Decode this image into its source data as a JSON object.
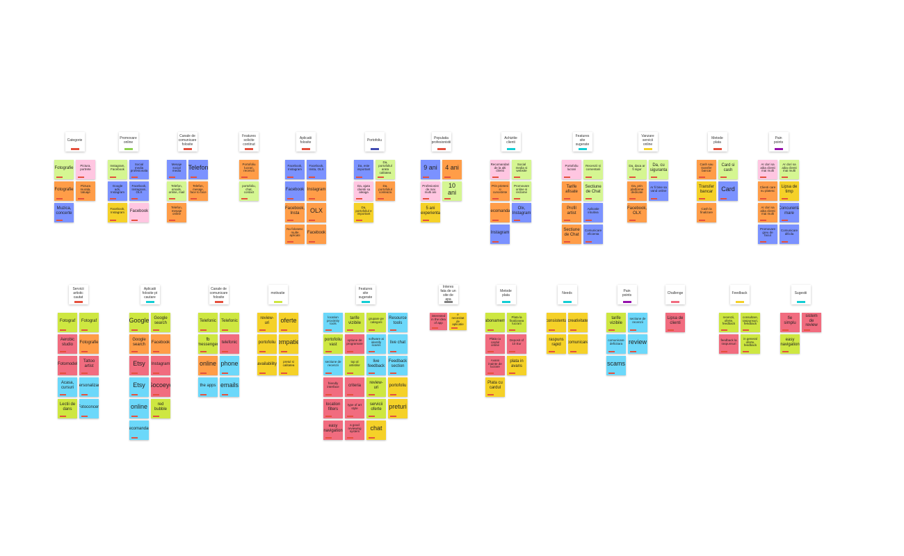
{
  "board": {
    "groups": [
      {
        "title": "Categorie",
        "tag_color": "#e5503d",
        "notes": [
          {
            "text": "Fotografie",
            "color": "#d5f692"
          },
          {
            "text": "Pictura, portrete",
            "color": "#ffc6e1"
          },
          {
            "text": "Fotografie",
            "color": "#ff9d48"
          },
          {
            "text": "Pictura murala, tatuaje",
            "color": "#ff9d48"
          },
          {
            "text": "Muzica, concerte",
            "color": "#7b92ff"
          }
        ]
      },
      {
        "title": "Promovare online",
        "tag_color": "#8fd14f",
        "notes": [
          {
            "text": "Instagram, Facebook",
            "color": "#d5f692"
          },
          {
            "text": "Social media profesionala",
            "color": "#7b92ff"
          },
          {
            "text": "Google ads, Instagram",
            "color": "#7b92ff"
          },
          {
            "text": "Facebook, Instagram, OLX",
            "color": "#7b92ff"
          },
          {
            "text": "Facebook, Instagram",
            "color": "#f5d128"
          },
          {
            "text": "Facebook",
            "color": "#ffc6e1"
          }
        ]
      },
      {
        "title": "Canale de comunicare folosite",
        "tag_color": "#e5503d",
        "notes": [
          {
            "text": "Mesaje social media",
            "color": "#7b92ff"
          },
          {
            "text": "Telefon",
            "color": "#7b92ff"
          },
          {
            "text": "Telefon, emails, online, mail",
            "color": "#d5f692"
          },
          {
            "text": "Telefon, mesaje, face to face",
            "color": "#ff9d48"
          },
          {
            "text": "Telefon, mesaje online",
            "color": "#ff9d48"
          }
        ]
      },
      {
        "title": "Features solicite continut",
        "tag_color": "#e5503d",
        "notes": [
          {
            "text": "Portofoliu lucrari, recenzii",
            "color": "#ff9d48"
          },
          {
            "text": "portofoliu, chat, contact",
            "color": "#d5f692"
          }
        ]
      },
      {
        "title": "Aplicatii folosite",
        "tag_color": "#e5503d",
        "notes": [
          {
            "text": "Facebook, Instagram",
            "color": "#7b92ff"
          },
          {
            "text": "Facebook, Insta, OLX",
            "color": "#7b92ff"
          },
          {
            "text": "Facebook",
            "color": "#7b92ff"
          },
          {
            "text": "Instagram",
            "color": "#ff9d48"
          },
          {
            "text": "Facebook, Insta",
            "color": "#ff9d48"
          },
          {
            "text": "OLX",
            "color": "#ff9d48"
          },
          {
            "text": "Nu folosesc multe aplicatii",
            "color": "#ff9d48"
          },
          {
            "text": "Facebook",
            "color": "#ff9d48"
          }
        ]
      },
      {
        "title": "Portofoliu",
        "tag_color": "#414bb2",
        "notes": [
          {
            "text": "Da, este important",
            "color": "#7b92ff"
          },
          {
            "text": "Da, portofoliul arata calitatea",
            "color": "#d5f692"
          },
          {
            "text": "Da, ajuta clientii sa aleaga",
            "color": "#ffc6e1"
          },
          {
            "text": "Da, portofoliul conteaza",
            "color": "#ff9d48"
          },
          {
            "text": "Da, portofoliul e important",
            "color": "#f5d128"
          }
        ]
      },
      {
        "title": "Populatia profesionistii",
        "tag_color": "#e5503d",
        "notes": [
          {
            "text": "9 ani",
            "color": "#7b92ff"
          },
          {
            "text": "4 ani",
            "color": "#ff9d48"
          },
          {
            "text": "Profesionist de mai multi ani",
            "color": "#ffc6e1"
          },
          {
            "text": "10 ani",
            "color": "#d5f692"
          },
          {
            "text": "5 ani experienta",
            "color": "#f5d128"
          }
        ]
      },
      {
        "title": "Achizitie clienti",
        "tag_color": "#12cdd4",
        "notes": [
          {
            "text": "Recomandari de la alti clienti",
            "color": "#ffc6e1"
          },
          {
            "text": "Social media si website",
            "color": "#d5f692"
          },
          {
            "text": "Prin prieteni si cunostinte",
            "color": "#ff9d48"
          },
          {
            "text": "Promovare online si reclame",
            "color": "#d5f692"
          },
          {
            "text": "Recomandari",
            "color": "#ff9d48"
          },
          {
            "text": "Olx, Instagram",
            "color": "#7b92ff"
          },
          {
            "text": "Instagram",
            "color": "#7b92ff"
          }
        ]
      },
      {
        "title": "Features site sugerate",
        "tag_color": "#12cdd4",
        "notes": [
          {
            "text": "Portofoliu lucrari",
            "color": "#ffc6e1"
          },
          {
            "text": "Recenzii si comentarii",
            "color": "#d5f692"
          },
          {
            "text": "Tarife afisate",
            "color": "#ff9d48"
          },
          {
            "text": "Sectiune de Chat",
            "color": "#d5f692"
          },
          {
            "text": "Profil artist",
            "color": "#ff9d48"
          },
          {
            "text": "Aplicatie intuitiva",
            "color": "#7b92ff"
          },
          {
            "text": "Sectiune de Chat",
            "color": "#ff9d48"
          },
          {
            "text": "Comunicare eficienta",
            "color": "#7b92ff"
          }
        ]
      },
      {
        "title": "Vanzare servicii online",
        "tag_color": "#f5d128",
        "notes": [
          {
            "text": "Da, daca ar fi sigur",
            "color": "#d5f692"
          },
          {
            "text": "Da, cu siguranta",
            "color": "#d5f692"
          },
          {
            "text": "Da, prin platforme dedicate",
            "color": "#ff9d48"
          },
          {
            "text": "Ar fi bine sa vand online",
            "color": "#7b92ff"
          },
          {
            "text": "Facebook, OLX",
            "color": "#ff9d48"
          }
        ]
      },
      {
        "title": "Metode plata",
        "tag_color": "#e5503d",
        "notes": [
          {
            "text": "Cash sau transfer bancar",
            "color": "#ff9d48"
          },
          {
            "text": "Card si cash",
            "color": "#d5f692"
          },
          {
            "text": "Transfer bancar",
            "color": "#f5d128"
          },
          {
            "text": "Card",
            "color": "#7b92ff"
          },
          {
            "text": "Cash la finalizare",
            "color": "#ff9d48"
          }
        ]
      },
      {
        "title": "Pain points",
        "tag_color": "#9510ac",
        "notes": [
          {
            "text": "Ar dori sa aiba clienti mai multi",
            "color": "#ffc6e1"
          },
          {
            "text": "Ar dori sa aiba clienti mai multi",
            "color": "#d5f692"
          },
          {
            "text": "Clienti care nu platesc",
            "color": "#ff9d48"
          },
          {
            "text": "Lipsa de timp",
            "color": "#f5d128"
          },
          {
            "text": "Ar dori sa aiba clienti mai multi",
            "color": "#ff9d48"
          },
          {
            "text": "Concurenta mare",
            "color": "#7b92ff"
          },
          {
            "text": "Promovare greu de facut",
            "color": "#7b92ff"
          },
          {
            "text": "Comunicare dificila",
            "color": "#7b92ff"
          }
        ]
      },
      {
        "title": "Servicii artistic cautat",
        "tag_color": "#e5503d",
        "notes": [
          {
            "text": "Fotograf",
            "color": "#cee741"
          },
          {
            "text": "Fotograf",
            "color": "#cee741"
          },
          {
            "text": "Aerobic studio",
            "color": "#f16c7f"
          },
          {
            "text": "Fotografie",
            "color": "#ff9d48"
          },
          {
            "text": "Fotomodel",
            "color": "#f16c7f"
          },
          {
            "text": "Tattoo artist",
            "color": "#f16c7f"
          },
          {
            "text": "Acasa, cursuri",
            "color": "#6cd8fa"
          },
          {
            "text": "Personalizare",
            "color": "#6cd8fa"
          },
          {
            "text": "Lectii de dans",
            "color": "#cee741"
          },
          {
            "text": "Fotoconcert",
            "color": "#6cd8fa"
          }
        ]
      },
      {
        "title": "Aplicatii folosite pt cautare",
        "tag_color": "#12cdd4",
        "notes": [
          {
            "text": "Google",
            "color": "#cee741"
          },
          {
            "text": "Google search",
            "color": "#cee741"
          },
          {
            "text": "Google search",
            "color": "#ff9d48"
          },
          {
            "text": "Facebook",
            "color": "#ff9d48"
          },
          {
            "text": "Etsy",
            "color": "#f16c7f"
          },
          {
            "text": "Instagram",
            "color": "#f16c7f"
          },
          {
            "text": "Etsy",
            "color": "#6cd8fa"
          },
          {
            "text": "Socoeye",
            "color": "#f16c7f"
          },
          {
            "text": "online",
            "color": "#6cd8fa"
          },
          {
            "text": "red bubble",
            "color": "#cee741"
          },
          {
            "text": "recomandari",
            "color": "#6cd8fa"
          }
        ]
      },
      {
        "title": "Canale de comunicare folosite",
        "tag_color": "#e5503d",
        "notes": [
          {
            "text": "Telefonic",
            "color": "#cee741"
          },
          {
            "text": "Telefonic",
            "color": "#cee741"
          },
          {
            "text": "fb messenger",
            "color": "#cee741"
          },
          {
            "text": "telefonic",
            "color": "#f16c7f"
          },
          {
            "text": "online",
            "color": "#ff9d48"
          },
          {
            "text": "phone",
            "color": "#6cd8fa"
          },
          {
            "text": "the apps",
            "color": "#6cd8fa"
          },
          {
            "text": "emails",
            "color": "#6cd8fa"
          }
        ]
      },
      {
        "title": "motivatie",
        "tag_color": "#cee741",
        "notes": [
          {
            "text": "review-uri",
            "color": "#f5d128"
          },
          {
            "text": "oferte",
            "color": "#f5d128"
          },
          {
            "text": "portofoliu",
            "color": "#f5d128"
          },
          {
            "text": "empatie",
            "color": "#f5d128"
          },
          {
            "text": "availability",
            "color": "#f5d128"
          },
          {
            "text": "pretul si calitatea",
            "color": "#f5d128"
          }
        ]
      },
      {
        "title": "Features site sugerate",
        "tag_color": "#12cdd4",
        "notes": [
          {
            "text": "location proximity tools",
            "color": "#6cd8fa"
          },
          {
            "text": "tarife vizibile",
            "color": "#cee741"
          },
          {
            "text": "grupare pe categorii",
            "color": "#cee741"
          },
          {
            "text": "Resource tools",
            "color": "#6cd8fa"
          },
          {
            "text": "portofoliu vast",
            "color": "#cee741"
          },
          {
            "text": "optiune de programare",
            "color": "#f16c7f"
          },
          {
            "text": "software ai identify scams",
            "color": "#6cd8fa"
          },
          {
            "text": "live chat",
            "color": "#6cd8fa"
          },
          {
            "text": "sectiune de recenzii",
            "color": "#6cd8fa"
          },
          {
            "text": "top al artistilor",
            "color": "#cee741"
          },
          {
            "text": "live feedback",
            "color": "#6cd8fa"
          },
          {
            "text": "Feedback section",
            "color": "#6cd8fa"
          },
          {
            "text": "friendly interface",
            "color": "#f16c7f"
          },
          {
            "text": "criteria",
            "color": "#f16c7f"
          },
          {
            "text": "review-uri",
            "color": "#cee741"
          },
          {
            "text": "portofoliu",
            "color": "#f5d128"
          },
          {
            "text": "location filters",
            "color": "#f16c7f"
          },
          {
            "text": "type of art style",
            "color": "#f16c7f"
          },
          {
            "text": "servicii oferte",
            "color": "#cee741"
          },
          {
            "text": "preturi",
            "color": "#f5d128"
          },
          {
            "text": "easy navigation",
            "color": "#f16c7f"
          },
          {
            "text": "a good reviewing system",
            "color": "#f16c7f"
          },
          {
            "text": "chat",
            "color": "#f5d128"
          }
        ]
      },
      {
        "title": "Interes fata de un site de apa",
        "tag_color": "#808080",
        "notes": [
          {
            "text": "interested in the idea of app",
            "color": "#f16c7f"
          },
          {
            "text": "e necesitat de aplicatie",
            "color": "#f5d128"
          }
        ]
      },
      {
        "title": "Metode plata",
        "tag_color": "#12cdd4",
        "notes": [
          {
            "text": "abonament",
            "color": "#cee741"
          },
          {
            "text": "Plata la finalizarea lucrarii",
            "color": "#cee741"
          },
          {
            "text": "Plata cu cardul online",
            "color": "#f16c7f"
          },
          {
            "text": "Deposit of 10 Eur",
            "color": "#f16c7f"
          },
          {
            "text": "Avans inainte de lucrare",
            "color": "#f16c7f"
          },
          {
            "text": "plata in avans",
            "color": "#f5d128"
          },
          {
            "text": "Plata cu cardul",
            "color": "#f5d128"
          }
        ]
      },
      {
        "title": "Needs",
        "tag_color": "#12cdd4",
        "notes": [
          {
            "text": "consistenta",
            "color": "#f5d128"
          },
          {
            "text": "creativitate",
            "color": "#f5d128"
          },
          {
            "text": "raspuns rapid",
            "color": "#f5d128"
          },
          {
            "text": "comunicare",
            "color": "#f5d128"
          }
        ]
      },
      {
        "title": "Pain points",
        "tag_color": "#9510ac",
        "notes": [
          {
            "text": "tarife vizibile",
            "color": "#cee741"
          },
          {
            "text": "sectiune de recenzii",
            "color": "#6cd8fa"
          },
          {
            "text": "comunicare deficitara",
            "color": "#6cd8fa"
          },
          {
            "text": "review",
            "color": "#6cd8fa"
          },
          {
            "text": "scams",
            "color": "#6cd8fa"
          }
        ]
      },
      {
        "title": "Challenge",
        "tag_color": "#f16c7f",
        "notes": [
          {
            "text": "Lipsa de clienti",
            "color": "#f16c7f"
          }
        ]
      },
      {
        "title": "Feedback",
        "tag_color": "#f5d128",
        "notes": [
          {
            "text": "recenzii, oferte, feedback",
            "color": "#cee741"
          },
          {
            "text": "consultare, raspunsuri, feedback",
            "color": "#cee741"
          },
          {
            "text": "feedback la raspunsuri",
            "color": "#f16c7f"
          },
          {
            "text": "in general oferte, feedback",
            "color": "#cee741"
          }
        ]
      },
      {
        "title": "Sugestii",
        "tag_color": "#12cdd4",
        "notes": [
          {
            "text": "fie simplu",
            "color": "#f16c7f"
          },
          {
            "text": "sistem de review",
            "color": "#f16c7f"
          },
          {
            "text": "easy navigation",
            "color": "#cee741"
          }
        ]
      }
    ]
  }
}
